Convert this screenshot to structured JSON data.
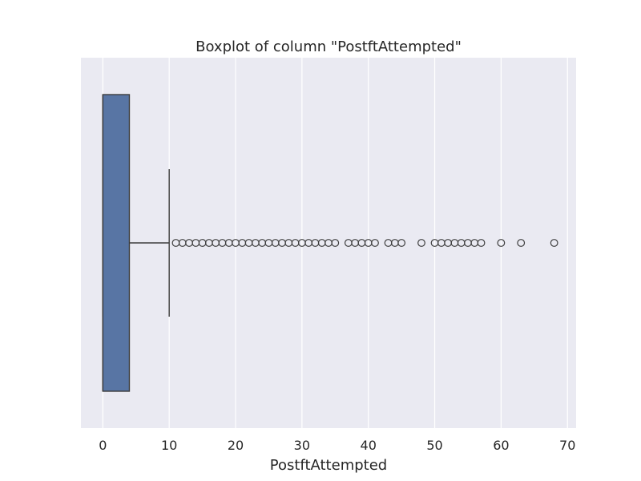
{
  "chart_data": {
    "type": "boxplot",
    "title": "Boxplot of column \"PostftAttempted\"",
    "xlabel": "PostftAttempted",
    "ylabel": "",
    "xlim": [
      -3.3,
      71.3
    ],
    "xticks": [
      0,
      10,
      20,
      30,
      40,
      50,
      60,
      70
    ],
    "grid": true,
    "orientation": "horizontal",
    "box": {
      "min": 0,
      "q1": 0,
      "median": 0,
      "q3": 4,
      "whisker_low": 0,
      "whisker_high": 10
    },
    "outliers": [
      11,
      12,
      13,
      14,
      15,
      16,
      17,
      18,
      19,
      20,
      21,
      22,
      23,
      24,
      25,
      26,
      27,
      28,
      29,
      30,
      31,
      32,
      33,
      34,
      35,
      37,
      38,
      39,
      40,
      41,
      43,
      44,
      45,
      48,
      50,
      51,
      52,
      53,
      54,
      55,
      56,
      57,
      60,
      63,
      68
    ],
    "colors": {
      "background": "#eaeaf2",
      "grid": "#ffffff",
      "box_fill": "#5875a4",
      "line": "#3d3d3d",
      "text": "#262626"
    }
  }
}
